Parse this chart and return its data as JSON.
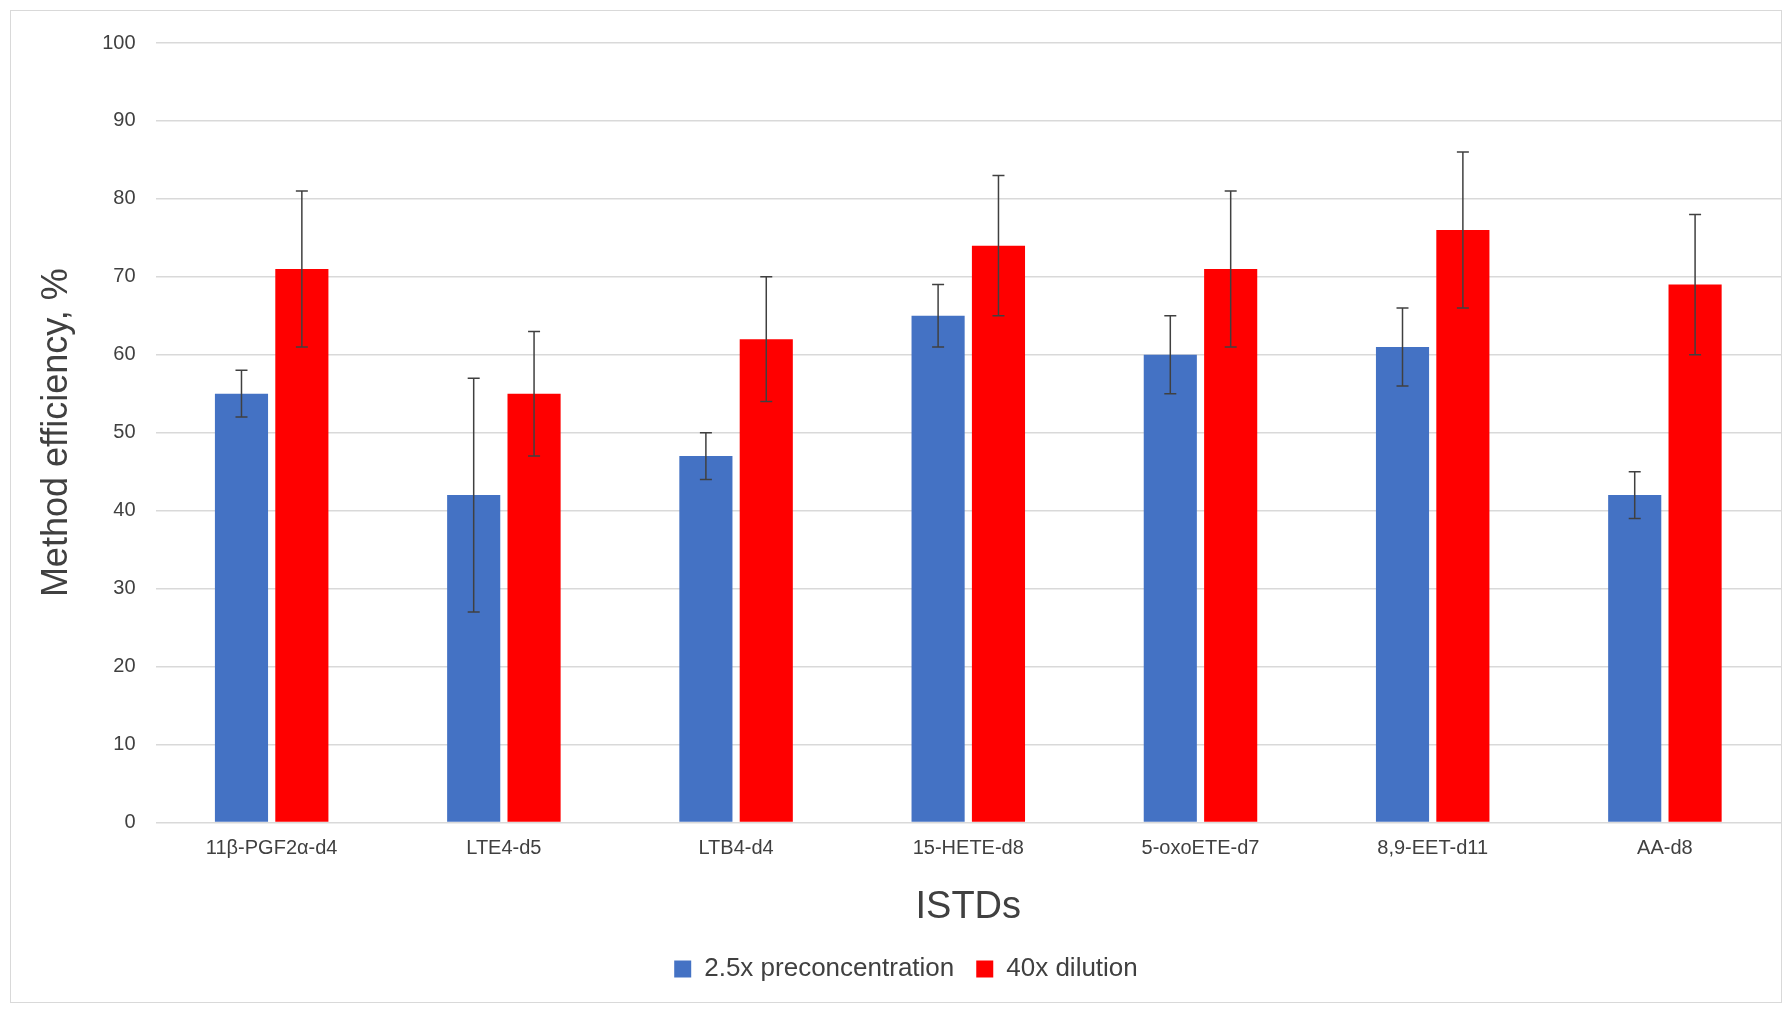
{
  "chart_data": {
    "type": "bar",
    "xlabel": "ISTDs",
    "ylabel": "Method efficiency, %",
    "categories": [
      "11β-PGF2α-d4",
      "LTE4-d5",
      "LTB4-d4",
      "15-HETE-d8",
      "5-oxoETE-d7",
      "8,9-EET-d11",
      "AA-d8"
    ],
    "series": [
      {
        "name": "2.5x preconcentration",
        "color": "#4472c4",
        "values": [
          55,
          42,
          47,
          65,
          60,
          61,
          42
        ],
        "errors": [
          3,
          15,
          3,
          4,
          5,
          5,
          3
        ]
      },
      {
        "name": "40x dilution",
        "color": "#ff0000",
        "values": [
          71,
          55,
          62,
          74,
          71,
          76,
          69
        ],
        "errors": [
          10,
          8,
          8,
          9,
          10,
          10,
          9
        ]
      }
    ],
    "ylim": [
      0,
      100
    ],
    "yticks": [
      0,
      10,
      20,
      30,
      40,
      50,
      60,
      70,
      80,
      90,
      100
    ],
    "grid": "y",
    "legend": "bottom"
  }
}
